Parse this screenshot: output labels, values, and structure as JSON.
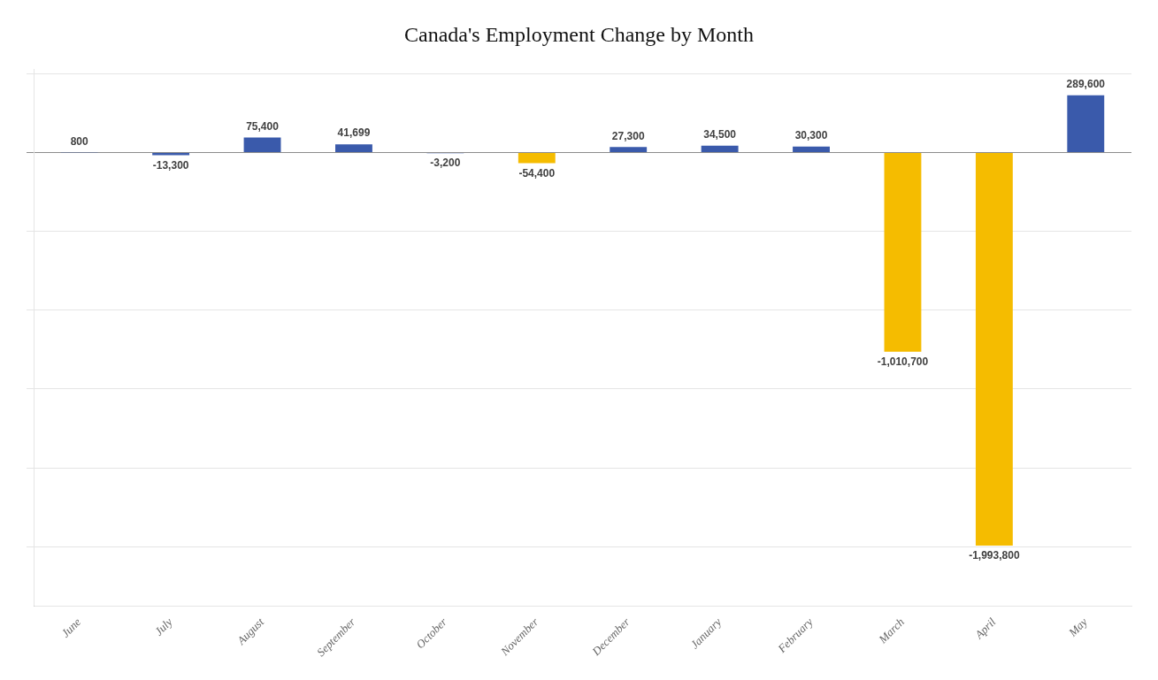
{
  "chart_data": {
    "type": "bar",
    "title": "Canada's Employment Change by Month",
    "categories": [
      "June",
      "July",
      "August",
      "September",
      "October",
      "November",
      "December",
      "January",
      "February",
      "March",
      "April",
      "May"
    ],
    "values": [
      800,
      -13300,
      75400,
      41699,
      -3200,
      -54400,
      27300,
      34500,
      30300,
      -1010700,
      -1993800,
      289600
    ],
    "value_labels": [
      "800",
      "-13,300",
      "75,400",
      "41,699",
      "-3,200",
      "-54,400",
      "27,300",
      "34,500",
      "30,300",
      "-1,010,700",
      "-1,993,800",
      "289,600"
    ],
    "colors": [
      "#3a5aab",
      "#3a5aab",
      "#3a5aab",
      "#3a5aab",
      "#3a5aab",
      "#f5bc00",
      "#3a5aab",
      "#3a5aab",
      "#3a5aab",
      "#f5bc00",
      "#f5bc00",
      "#3a5aab"
    ],
    "ylim": [
      -2300000,
      420000
    ],
    "yticks": [
      -2000000,
      -1600000,
      -1200000,
      -800000,
      -400000,
      0,
      400000
    ],
    "grid": true,
    "data_labels": true,
    "tick_labels": "x"
  }
}
